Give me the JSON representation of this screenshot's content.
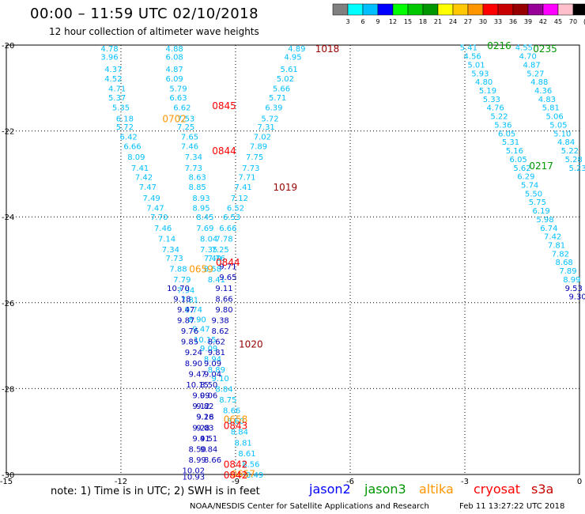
{
  "header": {
    "title": "00:00 – 11:59 UTC 02/10/2018",
    "subtitle": "12 hour collection of altimeter wave heights"
  },
  "legend_scale": {
    "labels": [
      "3",
      "6",
      "9",
      "12",
      "15",
      "18",
      "21",
      "24",
      "27",
      "30",
      "33",
      "36",
      "39",
      "42",
      "45",
      "70",
      "(ft)"
    ],
    "colors": [
      "#808080",
      "#00ffff",
      "#00bfff",
      "#0000ff",
      "#00ff00",
      "#00c800",
      "#009600",
      "#ffff00",
      "#ffc800",
      "#ff9600",
      "#ff0000",
      "#c80000",
      "#960000",
      "#960096",
      "#ff00ff",
      "#ffc0cb",
      "#000000"
    ]
  },
  "footer": {
    "note": "note: 1) Time is in UTC; 2) SWH is in feet",
    "satellites": [
      {
        "name": "jason2",
        "color": "#0000ff"
      },
      {
        "name": "jason3",
        "color": "#009600"
      },
      {
        "name": "altika",
        "color": "#ff9600"
      },
      {
        "name": "cryosat",
        "color": "#ff0000"
      },
      {
        "name": "s3a",
        "color": "#c80000"
      }
    ],
    "credit": "NOAA/NESDIS Center for Satellite Applications and Research",
    "timestamp": "Feb 11 13:27:22 UTC 2018"
  },
  "chart_data": {
    "type": "scatter",
    "x_range": [
      -15,
      0
    ],
    "y_range": [
      -30,
      -20
    ],
    "x_ticks": [
      "-15",
      "-12",
      "-9",
      "-6",
      "-3",
      "0"
    ],
    "y_ticks": [
      "-20",
      "-22",
      "-24",
      "-26",
      "-28",
      "-30"
    ],
    "grid": true,
    "series": [
      {
        "color": "#00bfff",
        "points": [
          [
            -12.3,
            -20.07,
            "4.78"
          ],
          [
            -12.3,
            -20.27,
            "3.96"
          ],
          [
            -12.2,
            -20.55,
            "4.37"
          ],
          [
            -12.2,
            -20.77,
            "4.52"
          ],
          [
            -12.1,
            -21.0,
            "4.71"
          ],
          [
            -12.1,
            -21.22,
            "5.37"
          ],
          [
            -12.0,
            -21.45,
            "5.35"
          ],
          [
            -11.9,
            -21.7,
            "6.18"
          ],
          [
            -11.9,
            -21.9,
            "5.72"
          ],
          [
            -11.8,
            -22.13,
            "6.42"
          ],
          [
            -11.7,
            -22.35,
            "6.66"
          ],
          [
            -11.6,
            -22.6,
            "8.09"
          ],
          [
            -11.5,
            -22.85,
            "7.41"
          ],
          [
            -11.4,
            -23.07,
            "7.42"
          ],
          [
            -11.3,
            -23.3,
            "7.47"
          ],
          [
            -11.2,
            -23.55,
            "7.49"
          ],
          [
            -11.1,
            -23.78,
            "7.47"
          ],
          [
            -11.0,
            -24.0,
            "7.70"
          ],
          [
            -10.9,
            -24.25,
            "7.46"
          ],
          [
            -10.8,
            -24.5,
            "7.14"
          ],
          [
            -10.7,
            -24.75,
            "7.34"
          ],
          [
            -10.6,
            -24.95,
            "7.73"
          ],
          [
            -10.5,
            -25.2,
            "7.88"
          ],
          [
            -10.4,
            -25.45,
            "7.79"
          ],
          [
            -10.3,
            -25.7,
            "7.94"
          ],
          [
            -10.2,
            -25.92,
            "7.81"
          ],
          [
            -10.1,
            -26.15,
            "9.74"
          ],
          [
            -10.0,
            -26.38,
            "8.90"
          ],
          [
            -9.9,
            -26.6,
            "9.47"
          ],
          [
            -9.8,
            -26.85,
            "10.15"
          ],
          [
            -9.7,
            -27.05,
            "9.09"
          ],
          [
            -9.6,
            -27.3,
            "8.94"
          ],
          [
            -9.5,
            -27.55,
            "8.89"
          ],
          [
            -9.4,
            -27.75,
            "9.10"
          ],
          [
            -9.3,
            -28.0,
            "8.84"
          ],
          [
            -9.2,
            -28.25,
            "8.75"
          ],
          [
            -9.1,
            -28.5,
            "8.66"
          ],
          [
            -9.0,
            -28.75,
            "8.60"
          ],
          [
            -8.9,
            -29.0,
            "8.84"
          ],
          [
            -8.8,
            -29.25,
            "8.81"
          ],
          [
            -8.7,
            -29.5,
            "8.61"
          ],
          [
            -8.6,
            -29.75,
            "8.56"
          ],
          [
            -8.5,
            -30.0,
            "8.49"
          ]
        ]
      },
      {
        "color": "#00bfff",
        "points": [
          [
            -10.6,
            -20.07,
            "4.88"
          ],
          [
            -10.6,
            -20.27,
            "6.08"
          ],
          [
            -10.6,
            -20.55,
            "4.87"
          ],
          [
            -10.6,
            -20.77,
            "6.09"
          ],
          [
            -10.5,
            -21.0,
            "5.79"
          ],
          [
            -10.5,
            -21.22,
            "6.63"
          ],
          [
            -10.4,
            -21.45,
            "6.62"
          ],
          [
            -10.3,
            -21.7,
            "7.53"
          ],
          [
            -10.3,
            -21.9,
            "7.25"
          ],
          [
            -10.2,
            -22.13,
            "7.65"
          ],
          [
            -10.2,
            -22.35,
            "7.46"
          ],
          [
            -10.1,
            -22.6,
            "7.34"
          ],
          [
            -10.1,
            -22.85,
            "7.73"
          ],
          [
            -10.0,
            -23.07,
            "8.63"
          ],
          [
            -10.0,
            -23.3,
            "8.85"
          ],
          [
            -9.9,
            -23.55,
            "8.93"
          ],
          [
            -9.9,
            -23.78,
            "8.95"
          ],
          [
            -9.8,
            -24.0,
            "8.45"
          ],
          [
            -9.8,
            -24.25,
            "7.69"
          ],
          [
            -9.7,
            -24.5,
            "8.04"
          ],
          [
            -9.7,
            -24.75,
            "7.35"
          ],
          [
            -9.6,
            -24.95,
            "7.40"
          ],
          [
            -9.6,
            -25.2,
            "8.58"
          ],
          [
            -9.5,
            -25.45,
            "8.41"
          ]
        ]
      },
      {
        "color": "#00bfff",
        "points": [
          [
            -7.4,
            -20.07,
            "4.89"
          ],
          [
            -7.5,
            -20.27,
            "4.95"
          ],
          [
            -7.6,
            -20.55,
            "5.61"
          ],
          [
            -7.7,
            -20.77,
            "5.02"
          ],
          [
            -7.8,
            -21.0,
            "5.66"
          ],
          [
            -7.9,
            -21.22,
            "5.71"
          ],
          [
            -8.0,
            -21.45,
            "6.39"
          ],
          [
            -8.1,
            -21.7,
            "5.72"
          ],
          [
            -8.2,
            -21.9,
            "7.31"
          ],
          [
            -8.3,
            -22.13,
            "7.02"
          ],
          [
            -8.4,
            -22.35,
            "7.89"
          ],
          [
            -8.5,
            -22.6,
            "7.75"
          ],
          [
            -8.6,
            -22.85,
            "7.73"
          ],
          [
            -8.7,
            -23.07,
            "7.71"
          ],
          [
            -8.8,
            -23.3,
            "7.41"
          ],
          [
            -8.9,
            -23.55,
            "7.12"
          ],
          [
            -9.0,
            -23.78,
            "6.52"
          ],
          [
            -9.1,
            -24.0,
            "6.53"
          ],
          [
            -9.2,
            -24.25,
            "6.66"
          ],
          [
            -9.3,
            -24.5,
            "7.78"
          ],
          [
            -9.4,
            -24.75,
            "7.25"
          ],
          [
            -9.5,
            -24.95,
            "7.76"
          ]
        ]
      },
      {
        "color": "#0000b4",
        "points": [
          [
            -9.2,
            -25.15,
            "9.71"
          ],
          [
            -9.2,
            -25.4,
            "9.65"
          ],
          [
            -9.3,
            -25.65,
            "9.11"
          ],
          [
            -9.3,
            -25.9,
            "8.66"
          ],
          [
            -9.3,
            -26.15,
            "9.80"
          ],
          [
            -9.4,
            -26.4,
            "9.38"
          ],
          [
            -9.4,
            -26.65,
            "8.62"
          ],
          [
            -9.5,
            -26.9,
            "8.62"
          ],
          [
            -9.5,
            -27.15,
            "9.81"
          ],
          [
            -9.6,
            -27.4,
            "9.09"
          ],
          [
            -9.6,
            -27.65,
            "9.04"
          ],
          [
            -9.7,
            -27.9,
            "8.50"
          ],
          [
            -9.7,
            -28.15,
            "9.06"
          ],
          [
            -9.8,
            -28.4,
            "9.82"
          ],
          [
            -9.8,
            -28.65,
            "9.18"
          ],
          [
            -9.9,
            -28.9,
            "9.28"
          ],
          [
            -9.9,
            -29.15,
            "9.41"
          ],
          [
            -10.0,
            -29.4,
            "8.50"
          ],
          [
            -10.0,
            -29.65,
            "8.99"
          ],
          [
            -10.1,
            -29.9,
            "10.02"
          ],
          [
            -10.1,
            -30.05,
            "10.93"
          ]
        ]
      },
      {
        "color": "#0000b4",
        "points": [
          [
            -10.5,
            -25.65,
            "10.70"
          ],
          [
            -10.4,
            -25.9,
            "9.18"
          ],
          [
            -10.3,
            -26.15,
            "9.47"
          ],
          [
            -10.3,
            -26.4,
            "9.87"
          ],
          [
            -10.2,
            -26.65,
            "9.76"
          ],
          [
            -10.2,
            -26.9,
            "9.85"
          ],
          [
            -10.1,
            -27.15,
            "9.24"
          ],
          [
            -10.1,
            -27.4,
            "8.90"
          ],
          [
            -10.0,
            -27.65,
            "9.47"
          ],
          [
            -10.0,
            -27.9,
            "10.15"
          ],
          [
            -9.9,
            -28.15,
            "9.09"
          ],
          [
            -9.9,
            -28.4,
            "9.12"
          ],
          [
            -9.8,
            -28.65,
            "9.26"
          ],
          [
            -9.8,
            -28.9,
            "9.03"
          ],
          [
            -9.7,
            -29.15,
            "9.51"
          ],
          [
            -9.7,
            -29.4,
            "9.84"
          ],
          [
            -9.6,
            -29.65,
            "8.66"
          ]
        ]
      },
      {
        "color": "#00bfff",
        "points": [
          [
            -2.9,
            -20.05,
            "5.41"
          ],
          [
            -2.8,
            -20.25,
            "4.56"
          ],
          [
            -2.7,
            -20.45,
            "5.01"
          ],
          [
            -2.6,
            -20.65,
            "5.93"
          ],
          [
            -2.5,
            -20.85,
            "4.80"
          ],
          [
            -2.4,
            -21.05,
            "5.19"
          ],
          [
            -2.3,
            -21.25,
            "5.33"
          ],
          [
            -2.2,
            -21.45,
            "4.76"
          ],
          [
            -2.1,
            -21.65,
            "5.22"
          ],
          [
            -2.0,
            -21.85,
            "5.36"
          ],
          [
            -1.9,
            -22.05,
            "6.05"
          ],
          [
            -1.8,
            -22.25,
            "5.31"
          ],
          [
            -1.7,
            -22.45,
            "5.16"
          ],
          [
            -1.6,
            -22.65,
            "6.05"
          ],
          [
            -1.5,
            -22.85,
            "5.62"
          ],
          [
            -1.4,
            -23.05,
            "6.29"
          ],
          [
            -1.3,
            -23.25,
            "5.74"
          ],
          [
            -1.2,
            -23.45,
            "5.50"
          ],
          [
            -1.1,
            -23.65,
            "5.75"
          ],
          [
            -1.0,
            -23.85,
            "6.19"
          ],
          [
            -0.9,
            -24.05,
            "5.98"
          ],
          [
            -0.8,
            -24.25,
            "6.74"
          ],
          [
            -0.7,
            -24.45,
            "7.42"
          ],
          [
            -0.6,
            -24.65,
            "7.81"
          ],
          [
            -0.5,
            -24.85,
            "7.82"
          ],
          [
            -0.4,
            -25.05,
            "8.68"
          ],
          [
            -0.3,
            -25.25,
            "7.89"
          ],
          [
            -0.2,
            -25.45,
            "8.99"
          ]
        ]
      },
      {
        "color": "#00bfff",
        "points": [
          [
            -1.45,
            -20.05,
            "4.55"
          ],
          [
            -1.35,
            -20.25,
            "4.70"
          ],
          [
            -1.25,
            -20.45,
            "4.87"
          ],
          [
            -1.15,
            -20.65,
            "5.27"
          ],
          [
            -1.05,
            -20.85,
            "4.88"
          ],
          [
            -0.95,
            -21.05,
            "4.36"
          ],
          [
            -0.85,
            -21.25,
            "4.83"
          ],
          [
            -0.75,
            -21.45,
            "5.81"
          ],
          [
            -0.65,
            -21.65,
            "5.06"
          ],
          [
            -0.55,
            -21.85,
            "5.05"
          ],
          [
            -0.45,
            -22.05,
            "5.10"
          ],
          [
            -0.35,
            -22.25,
            "4.84"
          ],
          [
            -0.25,
            -22.45,
            "5.22"
          ],
          [
            -0.15,
            -22.65,
            "5.28"
          ],
          [
            -0.05,
            -22.85,
            "5.23"
          ]
        ]
      },
      {
        "color": "#0000b4",
        "points": [
          [
            -0.15,
            -25.65,
            "9.53"
          ],
          [
            -0.05,
            -25.85,
            "9.30"
          ]
        ]
      }
    ],
    "pass_labels": [
      {
        "x": -6.6,
        "y": -20.07,
        "text": "1018",
        "color": "#960000"
      },
      {
        "x": -9.3,
        "y": -21.4,
        "text": "0845",
        "color": "#ff0000"
      },
      {
        "x": -10.6,
        "y": -21.7,
        "text": "0702",
        "color": "#ff9600"
      },
      {
        "x": -9.3,
        "y": -22.45,
        "text": "0844",
        "color": "#ff0000"
      },
      {
        "x": -7.7,
        "y": -23.3,
        "text": "1019",
        "color": "#960000"
      },
      {
        "x": -9.2,
        "y": -25.05,
        "text": "0844",
        "color": "#ff0000"
      },
      {
        "x": -9.9,
        "y": -25.2,
        "text": "0659",
        "color": "#ff9600"
      },
      {
        "x": -8.6,
        "y": -26.95,
        "text": "1020",
        "color": "#960000"
      },
      {
        "x": -9.0,
        "y": -28.7,
        "text": "0658",
        "color": "#ff9600"
      },
      {
        "x": -9.0,
        "y": -28.85,
        "text": "0843",
        "color": "#ff0000"
      },
      {
        "x": -9.0,
        "y": -29.75,
        "text": "0842",
        "color": "#ff0000"
      },
      {
        "x": -8.8,
        "y": -29.97,
        "text": "0657",
        "color": "#ff9600"
      },
      {
        "x": -9.0,
        "y": -30.0,
        "text": "0842",
        "color": "#ff0000"
      },
      {
        "x": -2.1,
        "y": -20.0,
        "text": "0216",
        "color": "#009600"
      },
      {
        "x": -0.9,
        "y": -20.07,
        "text": "0235",
        "color": "#009600"
      },
      {
        "x": -1.0,
        "y": -22.8,
        "text": "0217",
        "color": "#009600"
      }
    ]
  }
}
